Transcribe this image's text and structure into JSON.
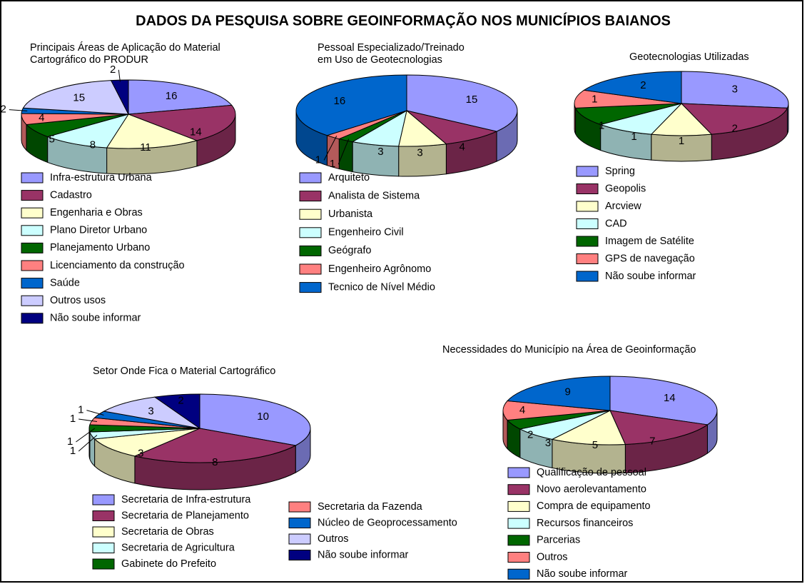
{
  "title": "DADOS DA PESQUISA SOBRE GEOINFORMAÇÃO NOS MUNICÍPIOS BAIANOS",
  "chart_data": [
    {
      "type": "pie",
      "title": [
        "Principais Áreas de Aplicação do Material",
        "Cartográfico do PRODUR"
      ],
      "categories": [
        "Infra-estrutura Urbana",
        "Cadastro",
        "Engenharia e Obras",
        "Plano Diretor Urbano",
        "Planejamento Urbano",
        "Licenciamento da construção",
        "Saúde",
        "Outros usos",
        "Não soube informar"
      ],
      "values": [
        16,
        14,
        11,
        8,
        5,
        4,
        2,
        15,
        2
      ],
      "colors": [
        "#9999ff",
        "#993366",
        "#ffffcc",
        "#ccffff",
        "#006600",
        "#ff8080",
        "#0066cc",
        "#ccccff",
        "#000080"
      ]
    },
    {
      "type": "pie",
      "title": [
        "Pessoal Especializado/Treinado",
        "em Uso de Geotecnologias"
      ],
      "categories": [
        "Arquiteto",
        "Analista de Sistema",
        "Urbanista",
        "Engenheiro Civil",
        "Geógrafo",
        "Engenheiro Agrônomo",
        "Tecnico de Nível Médio"
      ],
      "values": [
        15,
        4,
        3,
        3,
        1,
        1,
        16
      ],
      "colors": [
        "#9999ff",
        "#993366",
        "#ffffcc",
        "#ccffff",
        "#006600",
        "#ff8080",
        "#0066cc"
      ]
    },
    {
      "type": "pie",
      "title": [
        "Geotecnologias Utilizadas"
      ],
      "categories": [
        "Spring",
        "Geopolis",
        "Arcview",
        "CAD",
        "Imagem de Satélite",
        "GPS de navegação",
        "Não soube informar"
      ],
      "values": [
        3,
        2,
        1,
        1,
        1,
        1,
        2
      ],
      "colors": [
        "#9999ff",
        "#993366",
        "#ffffcc",
        "#ccffff",
        "#006600",
        "#ff8080",
        "#0066cc"
      ]
    },
    {
      "type": "pie",
      "title": [
        "Setor Onde Fica o Material Cartográfico"
      ],
      "categories": [
        "Secretaria de Infra-estrutura",
        "Secretaria de Planejamento",
        "Secretaria de Obras",
        "Secretaria de Agricultura",
        "Gabinete do Prefeito",
        "Secretaria da Fazenda",
        "Núcleo de Geoprocessamento",
        "Outros",
        "Não soube informar"
      ],
      "values": [
        10,
        8,
        3,
        1,
        1,
        1,
        1,
        3,
        2
      ],
      "colors": [
        "#9999ff",
        "#993366",
        "#ffffcc",
        "#ccffff",
        "#006600",
        "#ff8080",
        "#0066cc",
        "#ccccff",
        "#000080"
      ]
    },
    {
      "type": "pie",
      "title": [
        "Necessidades do Município na Área de Geoinformação"
      ],
      "categories": [
        "Qualificação de pessoal",
        "Novo aerolevantamento",
        "Compra de equipamento",
        "Recursos financeiros",
        "Parcerias",
        "Outros",
        "Não soube informar"
      ],
      "values": [
        14,
        7,
        5,
        3,
        2,
        4,
        9
      ],
      "colors": [
        "#9999ff",
        "#993366",
        "#ffffcc",
        "#ccffff",
        "#006600",
        "#ff8080",
        "#0066cc"
      ]
    }
  ]
}
